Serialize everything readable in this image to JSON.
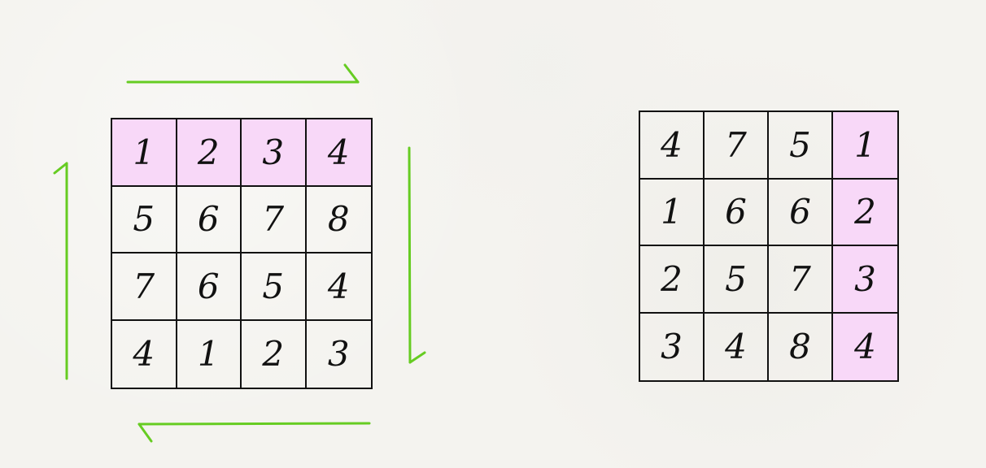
{
  "colors": {
    "highlight": "#f8d8f8",
    "arrow": "#66cc22",
    "grid_line": "#111111",
    "paper": "#f4f3ef"
  },
  "left_grid": {
    "rows": [
      [
        "1",
        "2",
        "3",
        "4"
      ],
      [
        "5",
        "6",
        "7",
        "8"
      ],
      [
        "7",
        "6",
        "5",
        "4"
      ],
      [
        "4",
        "1",
        "2",
        "3"
      ]
    ],
    "highlight": "row-0"
  },
  "right_grid": {
    "rows": [
      [
        "4",
        "7",
        "5",
        "1"
      ],
      [
        "1",
        "6",
        "6",
        "2"
      ],
      [
        "2",
        "5",
        "7",
        "3"
      ],
      [
        "3",
        "4",
        "8",
        "4"
      ]
    ],
    "highlight": "col-3"
  },
  "arrows": [
    {
      "name": "top-arrow-right",
      "direction": "right"
    },
    {
      "name": "right-arrow-down",
      "direction": "down"
    },
    {
      "name": "bottom-arrow-left",
      "direction": "left"
    },
    {
      "name": "left-arrow-up",
      "direction": "up"
    }
  ]
}
